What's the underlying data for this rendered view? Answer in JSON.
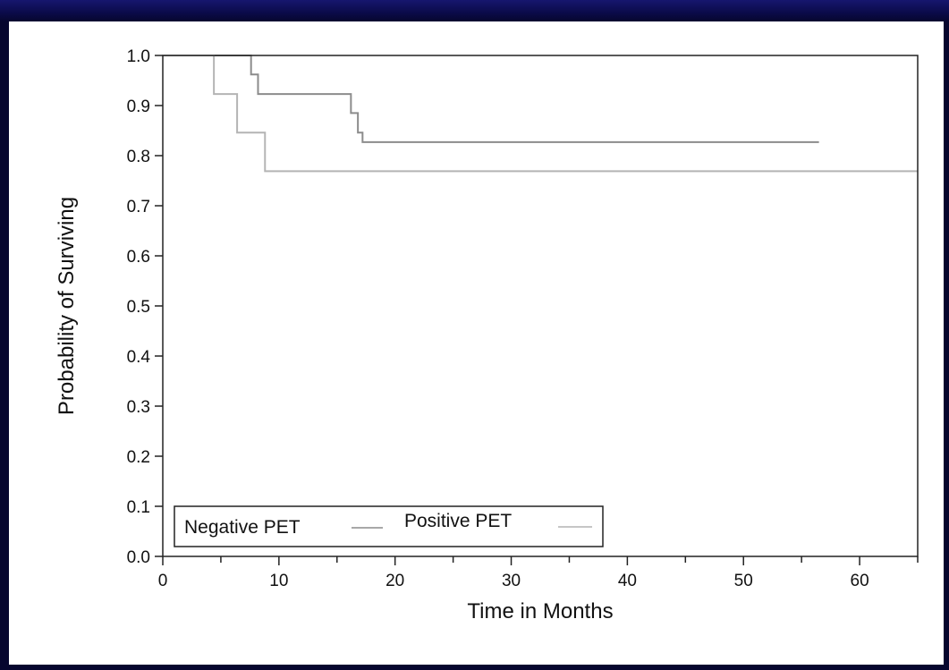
{
  "chart_data": {
    "type": "line",
    "title": "",
    "xlabel": "Time in Months",
    "ylabel": "Probability of Surviving",
    "xlim": [
      0,
      65
    ],
    "ylim": [
      0,
      1
    ],
    "x_ticks": [
      0,
      10,
      20,
      30,
      40,
      50,
      60
    ],
    "x_tick_labels": [
      "0",
      "10",
      "20",
      "30",
      "40",
      "50",
      "60"
    ],
    "y_ticks": [
      0,
      0.1,
      0.2,
      0.3,
      0.4,
      0.5,
      0.6,
      0.7,
      0.8,
      0.9,
      1.0
    ],
    "y_tick_labels": [
      "0.0",
      "0.1",
      "0.2",
      "0.3",
      "0.4",
      "0.5",
      "0.6",
      "0.7",
      "0.8",
      "0.9",
      "1.0"
    ],
    "grid": false,
    "legend": {
      "placement": "bottom-left",
      "entries": [
        "Negative PET",
        "Positive PET"
      ]
    },
    "series": [
      {
        "name": "Negative PET",
        "color": "#8c8c8c",
        "step": true,
        "x": [
          0,
          7.6,
          8.2,
          9.0,
          16.2,
          16.8,
          17.2,
          56.5
        ],
        "y": [
          1.0,
          0.962,
          0.923,
          0.923,
          0.885,
          0.846,
          0.827,
          0.827
        ]
      },
      {
        "name": "Positive PET",
        "color": "#b4b4b4",
        "step": true,
        "x": [
          0,
          4.4,
          6.4,
          8.8,
          65
        ],
        "y": [
          1.0,
          0.923,
          0.846,
          0.769,
          0.769
        ]
      }
    ]
  }
}
